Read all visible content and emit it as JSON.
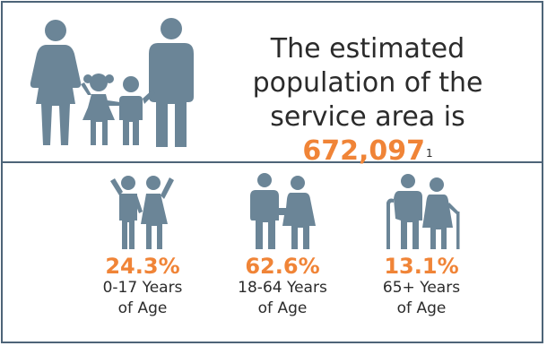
{
  "headline": {
    "line1": "The estimated",
    "line2": "population of the",
    "line3_prefix": "service area is ",
    "population": "672,097",
    "footnote": "1"
  },
  "age_groups": [
    {
      "percent": "24.3%",
      "label_line1": "0-17 Years",
      "label_line2": "of Age",
      "icon": "children-icon"
    },
    {
      "percent": "62.6%",
      "label_line1": "18-64 Years",
      "label_line2": "of Age",
      "icon": "adults-icon"
    },
    {
      "percent": "13.1%",
      "label_line1": "65+ Years",
      "label_line2": "of Age",
      "icon": "seniors-icon"
    }
  ],
  "colors": {
    "icon": "#6b8597",
    "accent": "#f08437",
    "border": "#4d6478",
    "text": "#2b2b2b"
  }
}
